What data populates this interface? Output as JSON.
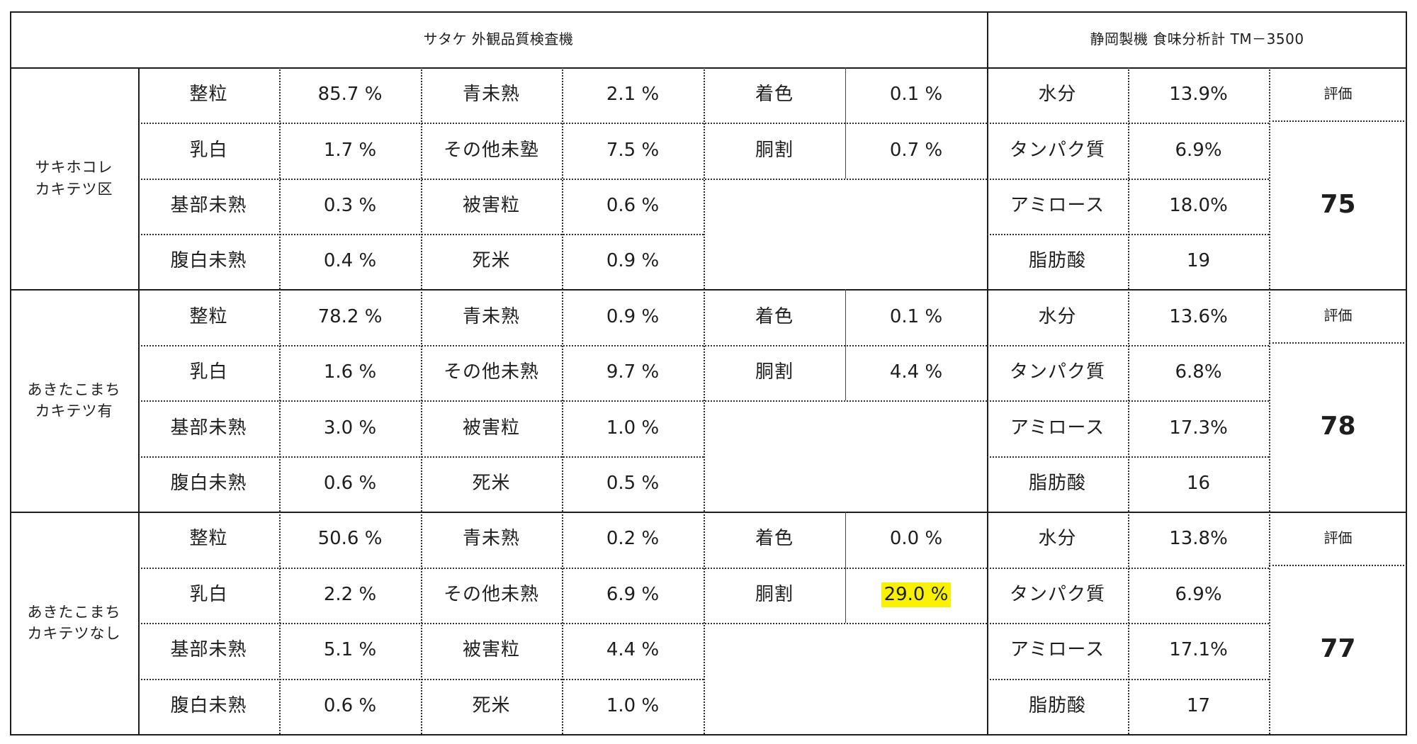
{
  "header": {
    "appearance": "サタケ 外観品質検査機",
    "taste": "静岡製機 食味分析計 TM－3500"
  },
  "colors": {
    "line": "#1c1c1c",
    "highlight": "#f8f200"
  },
  "groups": [
    {
      "name_line1": "サキホコレ",
      "name_line2": "カキテツ区",
      "appearance": [
        {
          "l1": "整粒",
          "v1": "85.7 %",
          "l2": "青未熟",
          "v2": "2.1 %",
          "l3": "着色",
          "v3": "0.1 %"
        },
        {
          "l1": "乳白",
          "v1": "1.7 %",
          "l2": "その他未塾",
          "v2": "7.5 %",
          "l3": "胴割",
          "v3": "0.7 %"
        },
        {
          "l1": "基部未熟",
          "v1": "0.3 %",
          "l2": "被害粒",
          "v2": "0.6 %"
        },
        {
          "l1": "腹白未熟",
          "v1": "0.4 %",
          "l2": "死米",
          "v2": "0.9 %"
        }
      ],
      "taste": [
        {
          "label": "水分",
          "value": "13.9%"
        },
        {
          "label": "タンパク質",
          "value": "6.9%"
        },
        {
          "label": "アミロース",
          "value": "18.0%"
        },
        {
          "label": "脂肪酸",
          "value": "19"
        }
      ],
      "eval_label": "評価",
      "score": "75"
    },
    {
      "name_line1": "あきたこまち",
      "name_line2": "カキテツ有",
      "appearance": [
        {
          "l1": "整粒",
          "v1": "78.2 %",
          "l2": "青未熟",
          "v2": "0.9 %",
          "l3": "着色",
          "v3": "0.1 %"
        },
        {
          "l1": "乳白",
          "v1": "1.6 %",
          "l2": "その他未熟",
          "v2": "9.7 %",
          "l3": "胴割",
          "v3": "4.4 %"
        },
        {
          "l1": "基部未熟",
          "v1": "3.0 %",
          "l2": "被害粒",
          "v2": "1.0 %"
        },
        {
          "l1": "腹白未熟",
          "v1": "0.6 %",
          "l2": "死米",
          "v2": "0.5 %"
        }
      ],
      "taste": [
        {
          "label": "水分",
          "value": "13.6%"
        },
        {
          "label": "タンパク質",
          "value": "6.8%"
        },
        {
          "label": "アミロース",
          "value": "17.3%"
        },
        {
          "label": "脂肪酸",
          "value": "16"
        }
      ],
      "eval_label": "評価",
      "score": "78"
    },
    {
      "name_line1": "あきたこまち",
      "name_line2": "カキテツなし",
      "appearance": [
        {
          "l1": "整粒",
          "v1": "50.6 %",
          "l2": "青未熟",
          "v2": "0.2 %",
          "l3": "着色",
          "v3": "0.0 %"
        },
        {
          "l1": "乳白",
          "v1": "2.2 %",
          "l2": "その他未熟",
          "v2": "6.9 %",
          "l3": "胴割",
          "v3": "29.0 %"
        },
        {
          "l1": "基部未熟",
          "v1": "5.1 %",
          "l2": "被害粒",
          "v2": "4.4 %"
        },
        {
          "l1": "腹白未熟",
          "v1": "0.6 %",
          "l2": "死米",
          "v2": "1.0 %"
        }
      ],
      "taste": [
        {
          "label": "水分",
          "value": "13.8%"
        },
        {
          "label": "タンパク質",
          "value": "6.9%"
        },
        {
          "label": "アミロース",
          "value": "17.1%"
        },
        {
          "label": "脂肪酸",
          "value": "17"
        }
      ],
      "eval_label": "評価",
      "score": "77"
    }
  ]
}
